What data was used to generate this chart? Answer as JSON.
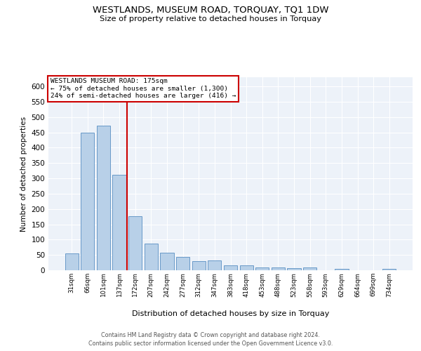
{
  "title": "WESTLANDS, MUSEUM ROAD, TORQUAY, TQ1 1DW",
  "subtitle": "Size of property relative to detached houses in Torquay",
  "xlabel": "Distribution of detached houses by size in Torquay",
  "ylabel": "Number of detached properties",
  "bar_color": "#b8d0e8",
  "bar_edge_color": "#6899c8",
  "vline_color": "#cc0000",
  "vline_pos": 3.5,
  "annotation_text": "WESTLANDS MUSEUM ROAD: 175sqm\n← 75% of detached houses are smaller (1,300)\n24% of semi-detached houses are larger (416) →",
  "categories": [
    "31sqm",
    "66sqm",
    "101sqm",
    "137sqm",
    "172sqm",
    "207sqm",
    "242sqm",
    "277sqm",
    "312sqm",
    "347sqm",
    "383sqm",
    "418sqm",
    "453sqm",
    "488sqm",
    "523sqm",
    "558sqm",
    "593sqm",
    "629sqm",
    "664sqm",
    "699sqm",
    "734sqm"
  ],
  "values": [
    55,
    450,
    472,
    311,
    176,
    88,
    58,
    43,
    30,
    32,
    15,
    15,
    10,
    10,
    6,
    10,
    0,
    5,
    0,
    0,
    5
  ],
  "ylim": [
    0,
    630
  ],
  "yticks": [
    0,
    50,
    100,
    150,
    200,
    250,
    300,
    350,
    400,
    450,
    500,
    550,
    600
  ],
  "footer1": "Contains HM Land Registry data © Crown copyright and database right 2024.",
  "footer2": "Contains public sector information licensed under the Open Government Licence v3.0.",
  "plot_bg": "#edf2f9",
  "grid_color": "#ffffff",
  "fig_bg_color": "#ffffff"
}
